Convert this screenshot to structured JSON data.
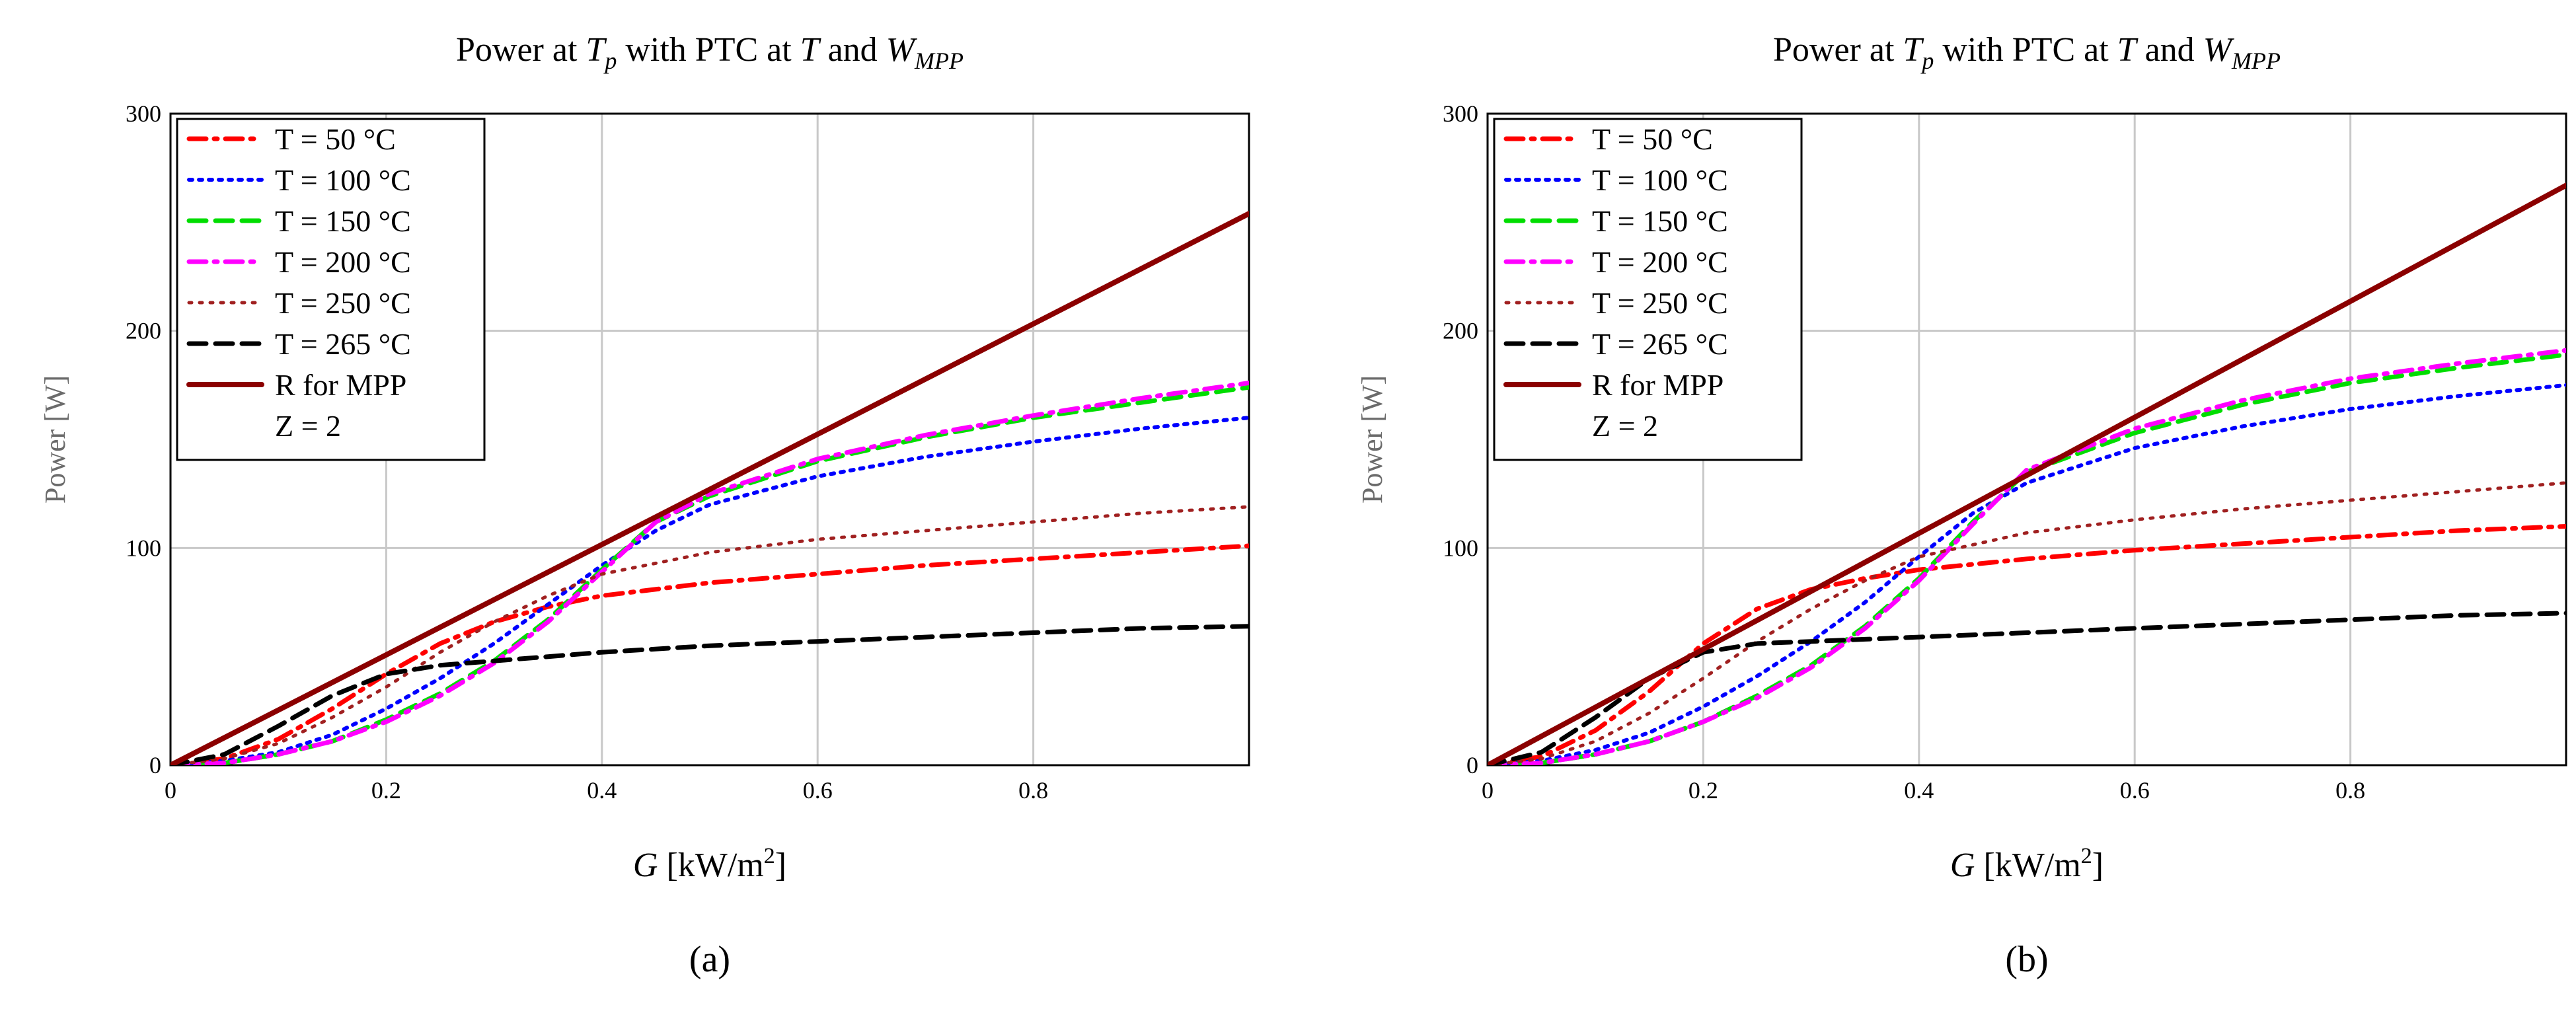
{
  "chart_data": [
    {
      "type": "line",
      "panel_label": "(a)",
      "title": {
        "prefix": "Power at ",
        "var1": "T",
        "sub1": "p",
        "mid": " with PTC at ",
        "var2": "T",
        "mid2": " and ",
        "var3": "W",
        "sub3": "MPP"
      },
      "xlabel": {
        "var": "G",
        "unit": " [kW/m",
        "sup": "2",
        "close": "]"
      },
      "ylabel": "Power [W]",
      "xlim": [
        0,
        1.0
      ],
      "ylim": [
        0,
        300
      ],
      "xticks": [
        0,
        0.2,
        0.4,
        0.6,
        0.8
      ],
      "xtick_labels": [
        "0",
        "0.2",
        "0.4",
        "0.6",
        "0.8"
      ],
      "yticks": [
        0,
        100,
        200,
        300
      ],
      "ytick_labels": [
        "0",
        "100",
        "200",
        "300"
      ],
      "grid": true,
      "legend_position": "top-left",
      "legend_extra": "Z = 2",
      "series": [
        {
          "name": "T = 50 °C",
          "color": "#ff0000",
          "dash": "dashdot",
          "x": [
            0,
            0.05,
            0.1,
            0.15,
            0.2,
            0.25,
            0.3,
            0.35,
            0.4,
            0.5,
            0.6,
            0.7,
            0.8,
            0.9,
            1.0
          ],
          "y": [
            0,
            3,
            12,
            26,
            42,
            56,
            66,
            73,
            78,
            84,
            88,
            92,
            95,
            98,
            101
          ]
        },
        {
          "name": "T = 100 °C",
          "color": "#0000ff",
          "dash": "dot",
          "x": [
            0,
            0.05,
            0.1,
            0.15,
            0.2,
            0.25,
            0.3,
            0.35,
            0.4,
            0.45,
            0.5,
            0.6,
            0.7,
            0.8,
            0.9,
            1.0
          ],
          "y": [
            0,
            2,
            6,
            14,
            26,
            40,
            56,
            74,
            92,
            108,
            120,
            133,
            142,
            149,
            155,
            160
          ]
        },
        {
          "name": "T = 150 °C",
          "color": "#00dd00",
          "dash": "dash",
          "x": [
            0,
            0.05,
            0.1,
            0.15,
            0.2,
            0.25,
            0.3,
            0.35,
            0.4,
            0.45,
            0.5,
            0.6,
            0.7,
            0.8,
            0.9,
            1.0
          ],
          "y": [
            0,
            1,
            5,
            11,
            21,
            33,
            48,
            67,
            90,
            112,
            124,
            140,
            151,
            160,
            167,
            174
          ]
        },
        {
          "name": "T = 200 °C",
          "color": "#ff00ff",
          "dash": "dashdot",
          "x": [
            0,
            0.05,
            0.1,
            0.15,
            0.2,
            0.25,
            0.3,
            0.35,
            0.4,
            0.45,
            0.5,
            0.6,
            0.7,
            0.8,
            0.9,
            1.0
          ],
          "y": [
            0,
            1,
            5,
            11,
            20,
            32,
            47,
            66,
            89,
            112,
            125,
            141,
            152,
            161,
            169,
            176
          ]
        },
        {
          "name": "T = 250 °C",
          "color": "#a02020",
          "dash": "dotfine",
          "x": [
            0,
            0.05,
            0.1,
            0.15,
            0.2,
            0.25,
            0.3,
            0.35,
            0.4,
            0.5,
            0.6,
            0.7,
            0.8,
            0.9,
            1.0
          ],
          "y": [
            0,
            3,
            10,
            22,
            36,
            52,
            66,
            78,
            88,
            98,
            104,
            108,
            112,
            116,
            119
          ]
        },
        {
          "name": "T = 265 °C",
          "color": "#000000",
          "dash": "dash",
          "x": [
            0,
            0.05,
            0.1,
            0.15,
            0.2,
            0.25,
            0.3,
            0.35,
            0.4,
            0.5,
            0.6,
            0.7,
            0.8,
            0.9,
            1.0
          ],
          "y": [
            0,
            5,
            18,
            32,
            42,
            46,
            48,
            50,
            52,
            55,
            57,
            59,
            61,
            63,
            64
          ]
        },
        {
          "name": "R for MPP",
          "color": "#8b0000",
          "dash": "solid",
          "x": [
            0,
            1.0
          ],
          "y": [
            0,
            254
          ]
        }
      ]
    },
    {
      "type": "line",
      "panel_label": "(b)",
      "title": {
        "prefix": "Power at ",
        "var1": "T",
        "sub1": "p",
        "mid": " with PTC at ",
        "var2": "T",
        "mid2": " and ",
        "var3": "W",
        "sub3": "MPP"
      },
      "xlabel": {
        "var": "G",
        "unit": " [kW/m",
        "sup": "2",
        "close": "]"
      },
      "ylabel": "Power [W]",
      "xlim": [
        0,
        1.0
      ],
      "ylim": [
        0,
        300
      ],
      "xticks": [
        0,
        0.2,
        0.4,
        0.6,
        0.8
      ],
      "xtick_labels": [
        "0",
        "0.2",
        "0.4",
        "0.6",
        "0.8"
      ],
      "yticks": [
        0,
        100,
        200,
        300
      ],
      "ytick_labels": [
        "0",
        "100",
        "200",
        "300"
      ],
      "grid": true,
      "legend_position": "top-left",
      "legend_extra": "Z = 2",
      "series": [
        {
          "name": "T = 50 °C",
          "color": "#ff0000",
          "dash": "dashdot",
          "x": [
            0,
            0.05,
            0.1,
            0.15,
            0.2,
            0.25,
            0.3,
            0.35,
            0.4,
            0.5,
            0.6,
            0.7,
            0.8,
            0.9,
            1.0
          ],
          "y": [
            0,
            4,
            16,
            34,
            56,
            72,
            81,
            86,
            90,
            95,
            99,
            102,
            105,
            108,
            110
          ]
        },
        {
          "name": "T = 100 °C",
          "color": "#0000ff",
          "dash": "dot",
          "x": [
            0,
            0.05,
            0.1,
            0.15,
            0.2,
            0.25,
            0.3,
            0.35,
            0.4,
            0.45,
            0.5,
            0.6,
            0.7,
            0.8,
            0.9,
            1.0
          ],
          "y": [
            0,
            2,
            7,
            15,
            27,
            41,
            57,
            75,
            96,
            116,
            130,
            146,
            156,
            164,
            170,
            175
          ]
        },
        {
          "name": "T = 150 °C",
          "color": "#00dd00",
          "dash": "dash",
          "x": [
            0,
            0.05,
            0.1,
            0.15,
            0.2,
            0.25,
            0.3,
            0.35,
            0.4,
            0.45,
            0.5,
            0.6,
            0.7,
            0.8,
            0.9,
            1.0
          ],
          "y": [
            0,
            1,
            5,
            11,
            20,
            32,
            46,
            64,
            86,
            112,
            135,
            153,
            166,
            176,
            183,
            189
          ]
        },
        {
          "name": "T = 200 °C",
          "color": "#ff00ff",
          "dash": "dashdot",
          "x": [
            0,
            0.05,
            0.1,
            0.15,
            0.2,
            0.25,
            0.3,
            0.35,
            0.4,
            0.45,
            0.5,
            0.6,
            0.7,
            0.8,
            0.9,
            1.0
          ],
          "y": [
            0,
            1,
            5,
            11,
            20,
            31,
            45,
            63,
            85,
            111,
            136,
            155,
            168,
            178,
            185,
            191
          ]
        },
        {
          "name": "T = 250 °C",
          "color": "#a02020",
          "dash": "dotfine",
          "x": [
            0,
            0.05,
            0.1,
            0.15,
            0.2,
            0.25,
            0.3,
            0.35,
            0.4,
            0.5,
            0.6,
            0.7,
            0.8,
            0.9,
            1.0
          ],
          "y": [
            0,
            3,
            11,
            24,
            40,
            57,
            72,
            85,
            96,
            107,
            113,
            118,
            122,
            126,
            130
          ]
        },
        {
          "name": "T = 265 °C",
          "color": "#000000",
          "dash": "dash",
          "x": [
            0,
            0.05,
            0.1,
            0.15,
            0.2,
            0.25,
            0.3,
            0.35,
            0.4,
            0.5,
            0.6,
            0.7,
            0.8,
            0.9,
            1.0
          ],
          "y": [
            0,
            6,
            22,
            40,
            52,
            56,
            57,
            58,
            59,
            61,
            63,
            65,
            67,
            69,
            70
          ]
        },
        {
          "name": "R for MPP",
          "color": "#8b0000",
          "dash": "solid",
          "x": [
            0,
            1.0
          ],
          "y": [
            0,
            267
          ]
        }
      ]
    }
  ]
}
